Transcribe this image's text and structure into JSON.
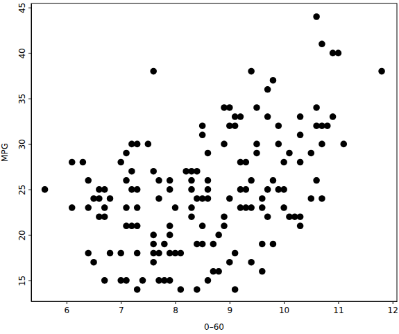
{
  "chart_data": {
    "type": "scatter",
    "x_label": "0–60",
    "y_label": "MPG",
    "color": "#000000",
    "marker": "circle",
    "xlim": [
      5.35,
      12.08
    ],
    "ylim": [
      12.7,
      45.45
    ],
    "xticks": [
      6,
      7,
      8,
      9,
      10,
      11,
      12
    ],
    "yticks": [
      15,
      20,
      25,
      30,
      35,
      40,
      45
    ],
    "x": [
      5.6,
      6.1,
      6.1,
      6.3,
      6.4,
      6.4,
      6.4,
      6.5,
      6.5,
      6.6,
      6.6,
      6.6,
      6.7,
      6.7,
      6.7,
      6.7,
      6.8,
      6.8,
      7.0,
      7.0,
      7.0,
      7.1,
      7.1,
      7.1,
      7.1,
      7.1,
      7.2,
      7.2,
      7.2,
      7.2,
      7.3,
      7.3,
      7.3,
      7.3,
      7.3,
      7.3,
      7.4,
      7.5,
      7.6,
      7.6,
      7.6,
      7.6,
      7.6,
      7.6,
      7.7,
      7.7,
      7.7,
      7.7,
      7.8,
      7.8,
      7.9,
      7.9,
      7.9,
      7.9,
      7.9,
      7.9,
      8.0,
      8.0,
      8.1,
      8.1,
      8.2,
      8.3,
      8.3,
      8.3,
      8.3,
      8.3,
      8.4,
      8.4,
      8.4,
      8.4,
      8.5,
      8.5,
      8.5,
      8.5,
      8.5,
      8.6,
      8.6,
      8.6,
      8.6,
      8.6,
      8.7,
      8.7,
      8.8,
      8.8,
      8.9,
      8.9,
      8.9,
      8.9,
      9.0,
      9.0,
      9.0,
      9.0,
      9.1,
      9.1,
      9.1,
      9.1,
      9.2,
      9.2,
      9.2,
      9.2,
      9.3,
      9.3,
      9.3,
      9.4,
      9.4,
      9.4,
      9.4,
      9.5,
      9.5,
      9.5,
      9.6,
      9.6,
      9.6,
      9.6,
      9.7,
      9.7,
      9.7,
      9.7,
      9.8,
      9.8,
      9.8,
      9.9,
      9.9,
      9.9,
      10.0,
      10.0,
      10.0,
      10.1,
      10.1,
      10.2,
      10.3,
      10.3,
      10.3,
      10.3,
      10.3,
      10.5,
      10.5,
      10.6,
      10.6,
      10.6,
      10.6,
      10.7,
      10.7,
      10.7,
      10.7,
      10.8,
      10.9,
      10.9,
      11.0,
      11.1,
      11.8
    ],
    "values": [
      25,
      28,
      23,
      28,
      26,
      23,
      18,
      24,
      17,
      25,
      24,
      22,
      25,
      23,
      22,
      15,
      24,
      18,
      28,
      18,
      15,
      29,
      26,
      23,
      21,
      15,
      30,
      27,
      25,
      21,
      30,
      25,
      23,
      21,
      18,
      14,
      15,
      30,
      38,
      27,
      20,
      19,
      18,
      17,
      26,
      24,
      18,
      15,
      19,
      15,
      26,
      25,
      21,
      20,
      18,
      15,
      23,
      18,
      18,
      14,
      27,
      27,
      26,
      25,
      23,
      22,
      27,
      24,
      19,
      14,
      32,
      31,
      24,
      21,
      19,
      29,
      26,
      25,
      24,
      15,
      19,
      16,
      16,
      20,
      30,
      22,
      21,
      34,
      34,
      32,
      24,
      17,
      33,
      32,
      18,
      14,
      33,
      28,
      25,
      23,
      28,
      25,
      23,
      38,
      26,
      23,
      17,
      34,
      30,
      29,
      24,
      23,
      19,
      16,
      36,
      33,
      25,
      22,
      37,
      26,
      19,
      32,
      30,
      25,
      28,
      25,
      23,
      29,
      22,
      22,
      33,
      31,
      28,
      22,
      21,
      29,
      24,
      44,
      34,
      32,
      26,
      41,
      32,
      30,
      24,
      32,
      40,
      33,
      40,
      30,
      38
    ]
  }
}
